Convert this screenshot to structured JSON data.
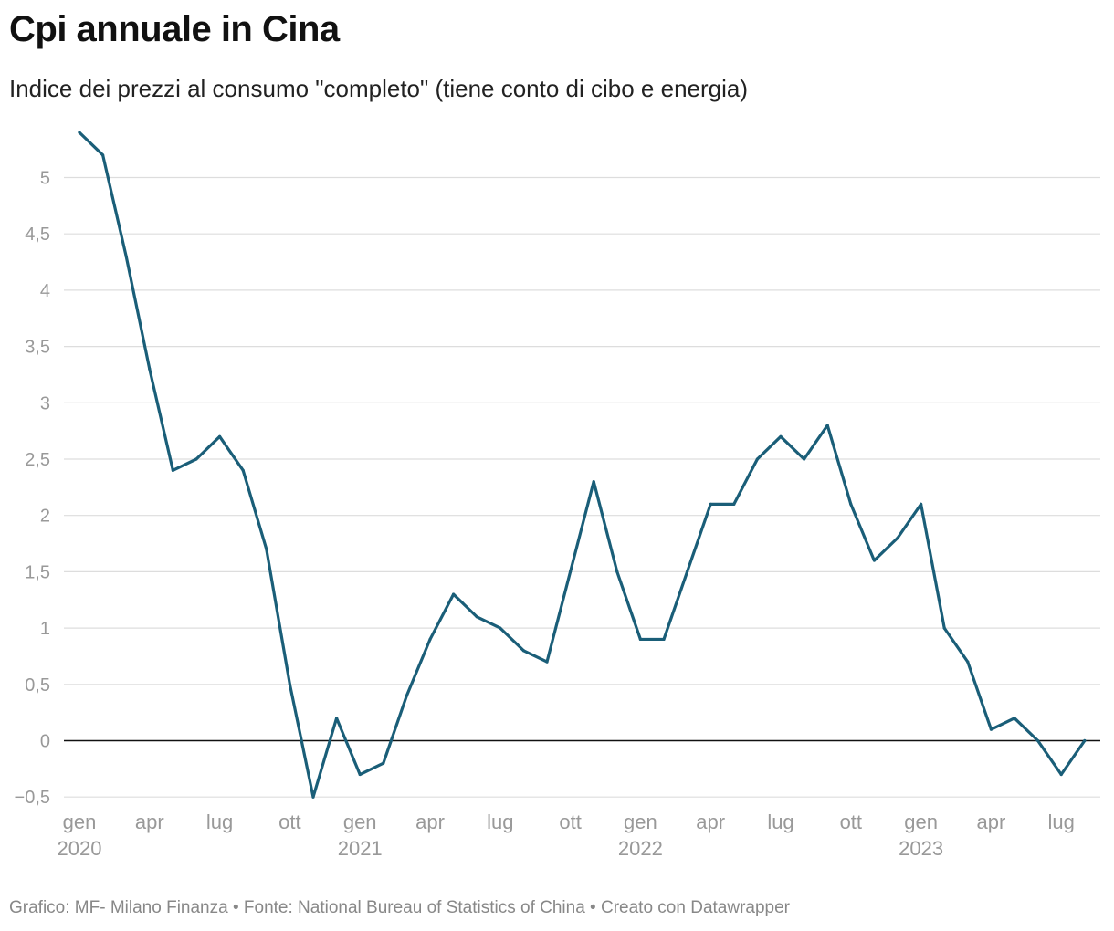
{
  "header": {
    "title": "Cpi annuale in Cina",
    "subtitle": "Indice dei prezzi al consumo \"completo\" (tiene conto di cibo e energia)"
  },
  "footer": {
    "chart_credit": "Grafico: MF- Milano Finanza",
    "source": "Fonte: National Bureau of Statistics of China",
    "tool": "Creato con Datawrapper",
    "separator": " • "
  },
  "colors": {
    "line": "#1a5e78",
    "grid": "#dddddd",
    "zero_line": "#111111",
    "tick_text": "#999999"
  },
  "chart_data": {
    "type": "line",
    "title": "Cpi annuale in Cina",
    "subtitle": "Indice dei prezzi al consumo \"completo\" (tiene conto di cibo e energia)",
    "xlabel": "",
    "ylabel": "",
    "ylim": [
      -0.5,
      5.4
    ],
    "grid": true,
    "y_ticks": [
      -0.5,
      0,
      0.5,
      1,
      1.5,
      2,
      2.5,
      3,
      3.5,
      4,
      4.5,
      5
    ],
    "y_tick_labels": [
      "−0,5",
      "0",
      "0,5",
      "1",
      "1,5",
      "2",
      "2,5",
      "3",
      "3,5",
      "4",
      "4,5",
      "5"
    ],
    "x_ticks": [
      {
        "index": 0,
        "label": "gen",
        "year": "2020"
      },
      {
        "index": 3,
        "label": "apr",
        "year": ""
      },
      {
        "index": 6,
        "label": "lug",
        "year": ""
      },
      {
        "index": 9,
        "label": "ott",
        "year": ""
      },
      {
        "index": 12,
        "label": "gen",
        "year": "2021"
      },
      {
        "index": 15,
        "label": "apr",
        "year": ""
      },
      {
        "index": 18,
        "label": "lug",
        "year": ""
      },
      {
        "index": 21,
        "label": "ott",
        "year": ""
      },
      {
        "index": 24,
        "label": "gen",
        "year": "2022"
      },
      {
        "index": 27,
        "label": "apr",
        "year": ""
      },
      {
        "index": 30,
        "label": "lug",
        "year": ""
      },
      {
        "index": 33,
        "label": "ott",
        "year": ""
      },
      {
        "index": 36,
        "label": "gen",
        "year": "2023"
      },
      {
        "index": 39,
        "label": "apr",
        "year": ""
      },
      {
        "index": 42,
        "label": "lug",
        "year": ""
      }
    ],
    "series": [
      {
        "name": "CPI annuale",
        "x": [
          "2020-01",
          "2020-02",
          "2020-03",
          "2020-04",
          "2020-05",
          "2020-06",
          "2020-07",
          "2020-08",
          "2020-09",
          "2020-10",
          "2020-11",
          "2020-12",
          "2021-01",
          "2021-02",
          "2021-03",
          "2021-04",
          "2021-05",
          "2021-06",
          "2021-07",
          "2021-08",
          "2021-09",
          "2021-10",
          "2021-11",
          "2021-12",
          "2022-01",
          "2022-02",
          "2022-03",
          "2022-04",
          "2022-05",
          "2022-06",
          "2022-07",
          "2022-08",
          "2022-09",
          "2022-10",
          "2022-11",
          "2022-12",
          "2023-01",
          "2023-02",
          "2023-03",
          "2023-04",
          "2023-05",
          "2023-06",
          "2023-07",
          "2023-08"
        ],
        "values": [
          5.4,
          5.2,
          4.3,
          3.3,
          2.4,
          2.5,
          2.7,
          2.4,
          1.7,
          0.5,
          -0.5,
          0.2,
          -0.3,
          -0.2,
          0.4,
          0.9,
          1.3,
          1.1,
          1.0,
          0.8,
          0.7,
          1.5,
          2.3,
          1.5,
          0.9,
          0.9,
          1.5,
          2.1,
          2.1,
          2.5,
          2.7,
          2.5,
          2.8,
          2.1,
          1.6,
          1.8,
          2.1,
          1.0,
          0.7,
          0.1,
          0.2,
          0.0,
          -0.3,
          0.0
        ]
      }
    ]
  }
}
